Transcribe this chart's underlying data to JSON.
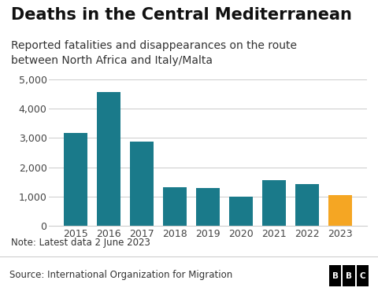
{
  "title": "Deaths in the Central Mediterranean",
  "subtitle": "Reported fatalities and disappearances on the route\nbetween North Africa and Italy/Malta",
  "note": "Note: Latest data 2 June 2023",
  "source": "Source: International Organization for Migration",
  "bbc_label": "BBC",
  "years": [
    "2015",
    "2016",
    "2017",
    "2018",
    "2019",
    "2020",
    "2021",
    "2022",
    "2023"
  ],
  "values": [
    3165,
    4581,
    2873,
    1311,
    1283,
    1000,
    1560,
    1417,
    1050
  ],
  "bar_colors": [
    "#1a7a8a",
    "#1a7a8a",
    "#1a7a8a",
    "#1a7a8a",
    "#1a7a8a",
    "#1a7a8a",
    "#1a7a8a",
    "#1a7a8a",
    "#f5a623"
  ],
  "ylim": [
    0,
    5200
  ],
  "yticks": [
    0,
    1000,
    2000,
    3000,
    4000,
    5000
  ],
  "ytick_labels": [
    "0",
    "1,000",
    "2,000",
    "3,000",
    "4,000",
    "5,000"
  ],
  "background_color": "#ffffff",
  "title_fontsize": 15,
  "subtitle_fontsize": 10,
  "tick_fontsize": 9,
  "note_fontsize": 8.5,
  "source_fontsize": 8.5,
  "title_color": "#111111",
  "subtitle_color": "#333333",
  "tick_color": "#444444",
  "note_color": "#333333",
  "source_color": "#333333",
  "grid_color": "#cccccc",
  "source_bar_color": "#e8e8e8"
}
